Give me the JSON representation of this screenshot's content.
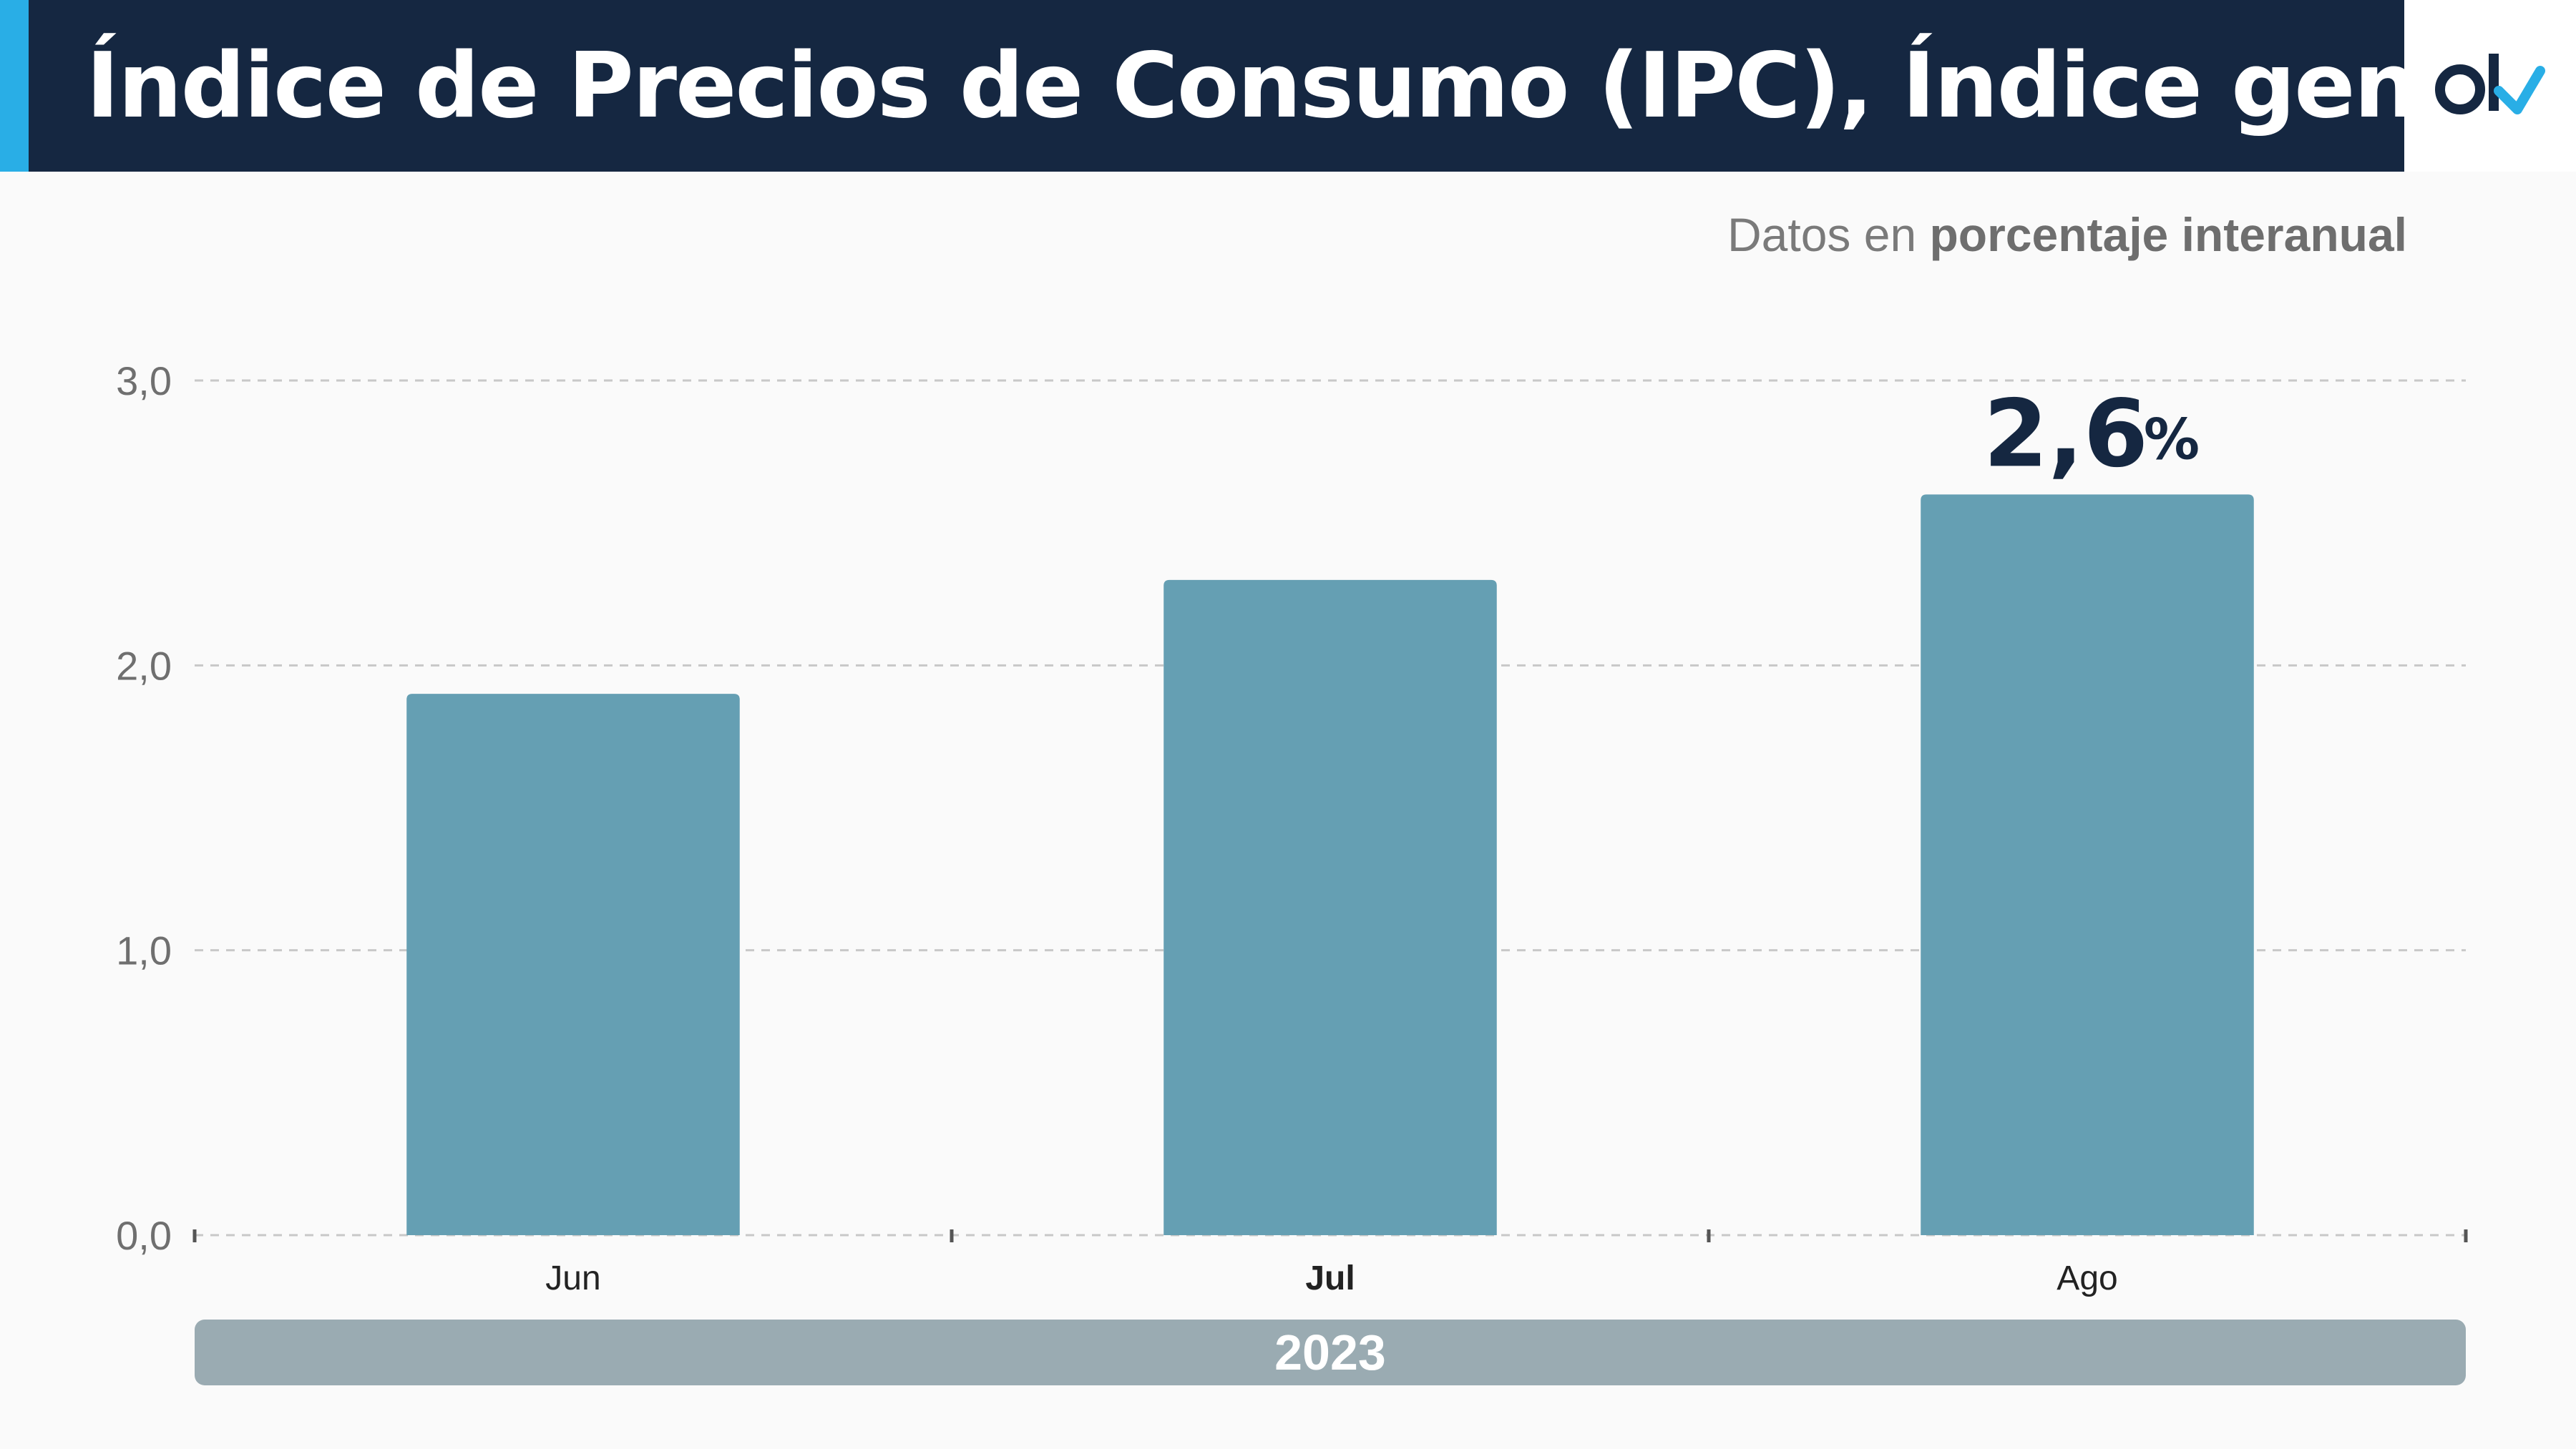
{
  "header": {
    "title": "Índice de Precios de Consumo (IPC), Índice general"
  },
  "subtitle": {
    "prefix": "Datos en ",
    "bold": "porcentaje interanual"
  },
  "colors": {
    "header_bg": "#152741",
    "accent": "#29aee6",
    "bar": "#659fb3",
    "year_bar": "#9aabb2",
    "logo_check": "#29aee6"
  },
  "chart_data": {
    "type": "bar",
    "categories": [
      "Jun",
      "Jul",
      "Ago"
    ],
    "values": [
      1.9,
      2.3,
      2.6
    ],
    "yticks": [
      "0,0",
      "1,0",
      "2,0",
      "3,0"
    ],
    "ylim": [
      0,
      3
    ],
    "grid": true,
    "highlight": {
      "index": 2,
      "value": "2,6",
      "unit": "%"
    },
    "group_label": "2023"
  }
}
